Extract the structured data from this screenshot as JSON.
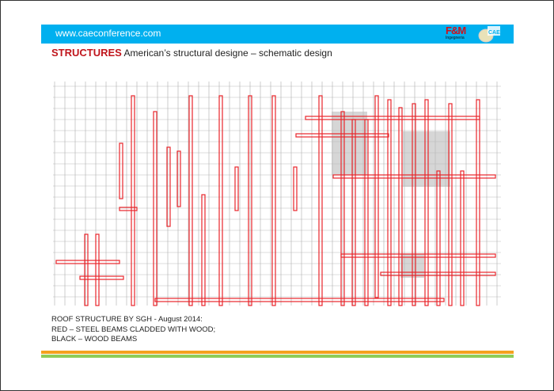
{
  "header": {
    "url": "www.caeconference.com",
    "logo_left": "F&M Ingegneria",
    "logo_right": "CAE"
  },
  "title": {
    "section": "STRUCTURES",
    "subtitle": "American’s structural designe – schematic design"
  },
  "caption": {
    "lines": [
      "ROOF STRUCTURE BY SGH - August 2014:",
      "RED – STEEL BEAMS CLADDED WITH WOOD;",
      "BLACK – WOOD BEAMS"
    ]
  },
  "colors": {
    "banner": "#00b0ef",
    "section": "#c0151c",
    "steel_beam": "#e8262b",
    "rule_orange": "#f4a11e",
    "rule_green": "#8fcd57"
  }
}
